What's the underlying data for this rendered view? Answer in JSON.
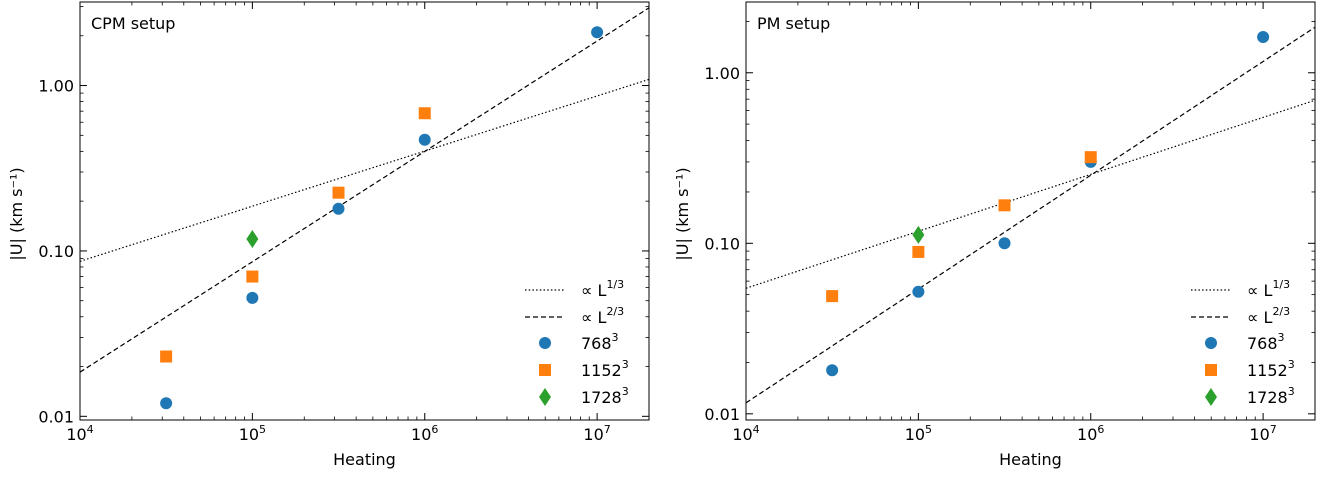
{
  "colors": {
    "series1": "#1f77b4",
    "series2": "#ff7f0e",
    "series3": "#2ca02c",
    "fit": "#000000"
  },
  "chart_data": [
    {
      "type": "scatter",
      "title": "CPM setup",
      "xlabel": "Heating",
      "ylabel": "|U| (km s⁻¹)",
      "xscale": "log",
      "yscale": "log",
      "xlim": [
        10000,
        20000000
      ],
      "ylim": [
        0.0095,
        3.2
      ],
      "xticks": [
        {
          "value": 10000,
          "base": "10",
          "exp": "4"
        },
        {
          "value": 100000,
          "base": "10",
          "exp": "5"
        },
        {
          "value": 1000000,
          "base": "10",
          "exp": "6"
        },
        {
          "value": 10000000,
          "base": "10",
          "exp": "7"
        }
      ],
      "yticks": [
        {
          "value": 0.01,
          "label": "0.01"
        },
        {
          "value": 0.1,
          "label": "0.10"
        },
        {
          "value": 1,
          "label": "1.00"
        }
      ],
      "legend_position": "bottom-right",
      "lines": [
        {
          "name": "∝ L",
          "exp": "1/3",
          "style": "dotted",
          "points": [
            [
              10000,
              0.0865
            ],
            [
              20000000,
              1.09
            ]
          ]
        },
        {
          "name": "∝ L",
          "exp": "2/3",
          "style": "dashed",
          "points": [
            [
              10000,
              0.0185
            ],
            [
              20000000,
              2.95
            ]
          ]
        }
      ],
      "series": [
        {
          "name": "768",
          "exp": "3",
          "marker": "circle",
          "points": [
            [
              31600,
              0.012
            ],
            [
              100000,
              0.052
            ],
            [
              316000,
              0.18
            ],
            [
              1000000,
              0.47
            ],
            [
              10000000,
              2.1
            ]
          ]
        },
        {
          "name": "1152",
          "exp": "3",
          "marker": "square",
          "points": [
            [
              31600,
              0.023
            ],
            [
              100000,
              0.07
            ],
            [
              316000,
              0.225
            ],
            [
              1000000,
              0.68
            ]
          ]
        },
        {
          "name": "1728",
          "exp": "3",
          "marker": "diamond",
          "points": [
            [
              100000,
              0.118
            ]
          ]
        }
      ]
    },
    {
      "type": "scatter",
      "title": "PM setup",
      "xlabel": "Heating",
      "ylabel": "|U| (km s⁻¹)",
      "xscale": "log",
      "yscale": "log",
      "xlim": [
        10000,
        20000000
      ],
      "ylim": [
        0.0092,
        2.6
      ],
      "xticks": [
        {
          "value": 10000,
          "base": "10",
          "exp": "4"
        },
        {
          "value": 100000,
          "base": "10",
          "exp": "5"
        },
        {
          "value": 1000000,
          "base": "10",
          "exp": "6"
        },
        {
          "value": 10000000,
          "base": "10",
          "exp": "7"
        }
      ],
      "yticks": [
        {
          "value": 0.01,
          "label": "0.01"
        },
        {
          "value": 0.1,
          "label": "0.10"
        },
        {
          "value": 1,
          "label": "1.00"
        }
      ],
      "legend_position": "bottom-right",
      "lines": [
        {
          "name": "∝ L",
          "exp": "1/3",
          "style": "dotted",
          "points": [
            [
              10000,
              0.0545
            ],
            [
              20000000,
              0.69
            ]
          ]
        },
        {
          "name": "∝ L",
          "exp": "2/3",
          "style": "dashed",
          "points": [
            [
              10000,
              0.0116
            ],
            [
              20000000,
              1.85
            ]
          ]
        }
      ],
      "series": [
        {
          "name": "768",
          "exp": "3",
          "marker": "circle",
          "points": [
            [
              31600,
              0.018
            ],
            [
              100000,
              0.052
            ],
            [
              316000,
              0.1
            ],
            [
              1000000,
              0.3
            ],
            [
              10000000,
              1.62
            ]
          ]
        },
        {
          "name": "1152",
          "exp": "3",
          "marker": "square",
          "points": [
            [
              31600,
              0.049
            ],
            [
              100000,
              0.089
            ],
            [
              316000,
              0.167
            ],
            [
              1000000,
              0.32
            ]
          ]
        },
        {
          "name": "1728",
          "exp": "3",
          "marker": "diamond",
          "points": [
            [
              100000,
              0.112
            ]
          ]
        }
      ]
    }
  ]
}
